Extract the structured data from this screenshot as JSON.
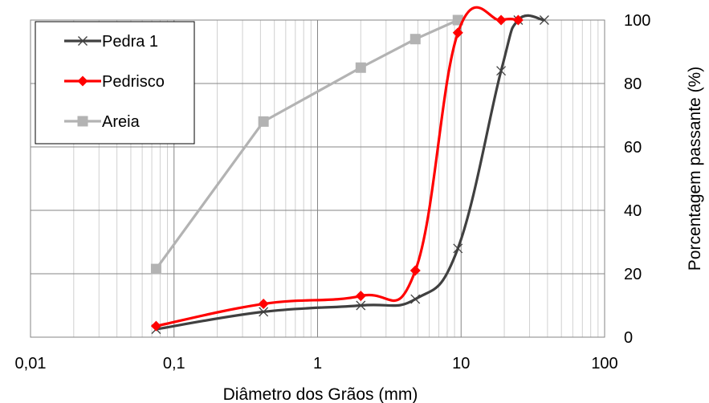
{
  "chart_data": {
    "type": "line",
    "xlabel": "Diâmetro dos Grãos (mm)",
    "ylabel": "Porcentagem passante (%)",
    "xscale": "log",
    "xlim": [
      0.01,
      100
    ],
    "ylim": [
      0,
      100
    ],
    "x_ticks": [
      0.01,
      0.1,
      1,
      10,
      100
    ],
    "x_tick_labels": [
      "0,01",
      "0,1",
      "1",
      "10",
      "100"
    ],
    "y_ticks": [
      0,
      20,
      40,
      60,
      80,
      100
    ],
    "y_tick_labels": [
      "0",
      "20",
      "40",
      "60",
      "80",
      "100"
    ],
    "y_axis_side": "right",
    "grid": true,
    "legend_position": "top-left",
    "series": [
      {
        "name": "Pedra 1",
        "color": "#404040",
        "marker": "x",
        "smooth": true,
        "x": [
          0.075,
          0.42,
          2.0,
          4.8,
          9.5,
          19.0,
          25.0,
          38.0
        ],
        "y": [
          2.5,
          8,
          10,
          12,
          28,
          84,
          100,
          100
        ]
      },
      {
        "name": "Pedrisco",
        "color": "#ff0000",
        "marker": "diamond",
        "smooth": true,
        "x": [
          0.075,
          0.42,
          2.0,
          4.8,
          9.5,
          19.0,
          25.0
        ],
        "y": [
          3.5,
          10.5,
          13,
          21,
          96,
          100,
          100
        ]
      },
      {
        "name": "Areia",
        "color": "#b3b3b3",
        "marker": "square",
        "smooth": false,
        "x": [
          0.075,
          0.42,
          2.0,
          4.8,
          9.5
        ],
        "y": [
          21.5,
          68,
          85,
          94,
          100
        ]
      }
    ]
  }
}
